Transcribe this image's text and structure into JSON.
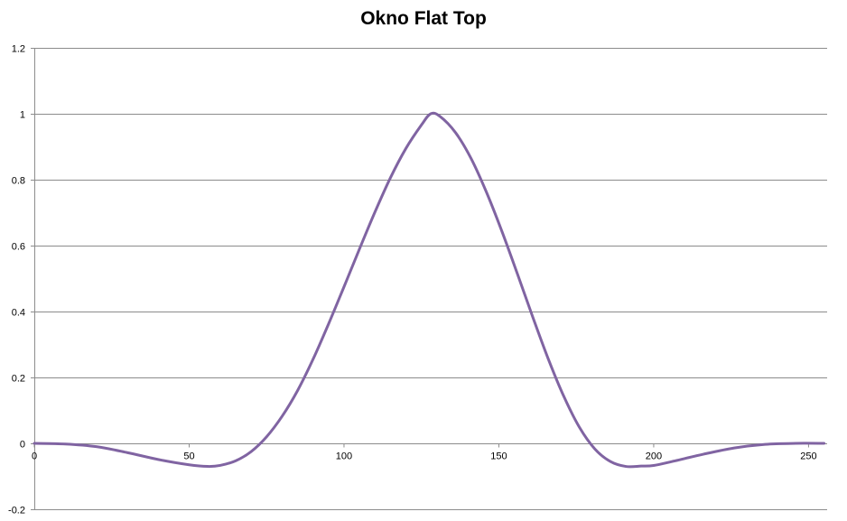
{
  "chart_data": {
    "type": "line",
    "title": "Okno Flat Top",
    "xlabel": "",
    "ylabel": "",
    "xlim": [
      0,
      256
    ],
    "ylim": [
      -0.2,
      1.2
    ],
    "x_ticks": [
      0,
      50,
      100,
      150,
      200,
      250
    ],
    "y_ticks": [
      -0.2,
      0,
      0.2,
      0.4,
      0.6,
      0.8,
      1,
      1.2
    ],
    "x_tick_labels": [
      "0",
      "50",
      "100",
      "150",
      "200",
      "250"
    ],
    "y_tick_labels": [
      "-0.2",
      "0",
      "0.2",
      "0.4",
      "0.6",
      "0.8",
      "1",
      "1.2"
    ],
    "grid": true,
    "legend": "none",
    "line_color": "#8064a2",
    "series": [
      {
        "x": [
          0,
          10,
          20,
          30,
          40,
          50,
          56,
          60,
          65,
          70,
          75,
          80,
          85,
          90,
          95,
          100,
          105,
          110,
          115,
          120,
          125,
          128,
          131,
          136,
          141,
          146,
          151,
          156,
          161,
          166,
          171,
          176,
          181,
          186,
          191,
          196,
          200,
          206,
          216,
          226,
          236,
          246,
          255
        ],
        "values": [
          0,
          -0.002,
          -0.01,
          -0.028,
          -0.049,
          -0.065,
          -0.07,
          -0.067,
          -0.053,
          -0.025,
          0.02,
          0.082,
          0.16,
          0.255,
          0.362,
          0.475,
          0.59,
          0.702,
          0.806,
          0.895,
          0.966,
          1.0,
          0.992,
          0.943,
          0.865,
          0.762,
          0.643,
          0.514,
          0.382,
          0.255,
          0.142,
          0.049,
          -0.017,
          -0.055,
          -0.07,
          -0.069,
          -0.067,
          -0.055,
          -0.033,
          -0.014,
          -0.003,
          0,
          0
        ]
      }
    ]
  }
}
